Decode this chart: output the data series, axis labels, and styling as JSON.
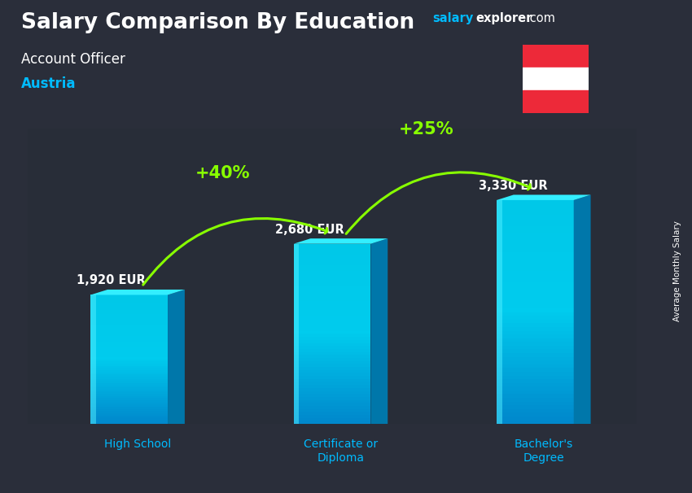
{
  "title_main": "Salary Comparison By Education",
  "title_sub": "Account Officer",
  "title_country": "Austria",
  "categories": [
    "High School",
    "Certificate or\nDiploma",
    "Bachelor's\nDegree"
  ],
  "values": [
    1920,
    2680,
    3330
  ],
  "value_labels": [
    "1,920 EUR",
    "2,680 EUR",
    "3,330 EUR"
  ],
  "pct_labels": [
    "+40%",
    "+25%"
  ],
  "bar_front_color": "#00c8e8",
  "bar_side_color": "#0088b0",
  "bar_top_color": "#00ddf5",
  "bar_highlight_color": "#55eeff",
  "bg_color": "#2a2e3a",
  "ylabel_side": "Average Monthly Salary",
  "arrow_color": "#88ff00",
  "pct_color": "#88ff00",
  "value_label_color": "#ffffff",
  "title_color": "#ffffff",
  "subtitle_color": "#ffffff",
  "country_color": "#00bbff",
  "cat_label_color": "#00bbff",
  "website_salary_color": "#00bbff",
  "website_rest_color": "#ffffff",
  "flag_red": "#ED2939",
  "flag_white": "#ffffff",
  "ylim_max": 4400,
  "bar_width": 0.38,
  "x_positions": [
    0.5,
    1.5,
    2.5
  ],
  "x_lim": [
    0,
    3.0
  ]
}
